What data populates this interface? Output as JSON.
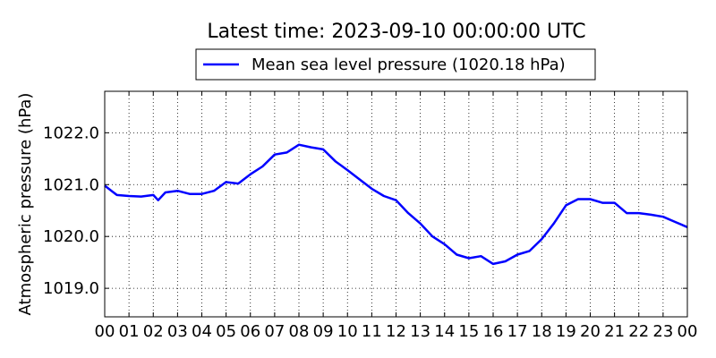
{
  "chart_data": {
    "type": "line",
    "title": "Latest time: 2023-09-10 00:00:00 UTC",
    "xlabel": "",
    "ylabel": "Atmospheric pressure (hPa)",
    "xlim": [
      0,
      24
    ],
    "ylim": [
      1018.45,
      1022.8
    ],
    "x_ticks": [
      0,
      1,
      2,
      3,
      4,
      5,
      6,
      7,
      8,
      9,
      10,
      11,
      12,
      13,
      14,
      15,
      16,
      17,
      18,
      19,
      20,
      21,
      22,
      23,
      24
    ],
    "x_tick_labels": [
      "00",
      "01",
      "02",
      "03",
      "04",
      "05",
      "06",
      "07",
      "08",
      "09",
      "10",
      "11",
      "12",
      "13",
      "14",
      "15",
      "16",
      "17",
      "18",
      "19",
      "20",
      "21",
      "22",
      "23",
      "00"
    ],
    "y_ticks": [
      1019.0,
      1020.0,
      1021.0,
      1022.0
    ],
    "y_tick_labels": [
      "1019.0",
      "1020.0",
      "1021.0",
      "1022.0"
    ],
    "grid": true,
    "legend_position": "top-center",
    "series": [
      {
        "name": "Mean sea level pressure (1020.18 hPa)",
        "color": "#0000ff",
        "x": [
          0,
          0.5,
          1,
          1.5,
          2,
          2.2,
          2.5,
          3,
          3.5,
          4,
          4.5,
          5,
          5.5,
          6,
          6.5,
          7,
          7.5,
          8,
          8.5,
          9,
          9.5,
          10,
          10.5,
          11,
          11.5,
          12,
          12.5,
          13,
          13.5,
          14,
          14.5,
          15,
          15.5,
          16,
          16.5,
          17,
          17.5,
          18,
          18.5,
          19,
          19.5,
          20,
          20.5,
          21,
          21.5,
          22,
          22.5,
          23,
          23.5,
          24
        ],
        "y": [
          1020.98,
          1020.8,
          1020.78,
          1020.77,
          1020.8,
          1020.7,
          1020.85,
          1020.88,
          1020.82,
          1020.82,
          1020.88,
          1021.05,
          1021.02,
          1021.2,
          1021.35,
          1021.58,
          1021.62,
          1021.77,
          1021.72,
          1021.68,
          1021.45,
          1021.28,
          1021.1,
          1020.92,
          1020.78,
          1020.7,
          1020.45,
          1020.25,
          1020.0,
          1019.85,
          1019.65,
          1019.58,
          1019.62,
          1019.47,
          1019.52,
          1019.65,
          1019.72,
          1019.95,
          1020.25,
          1020.6,
          1020.72,
          1020.72,
          1020.65,
          1020.65,
          1020.45,
          1020.45,
          1020.42,
          1020.38,
          1020.28,
          1020.18
        ]
      }
    ]
  }
}
